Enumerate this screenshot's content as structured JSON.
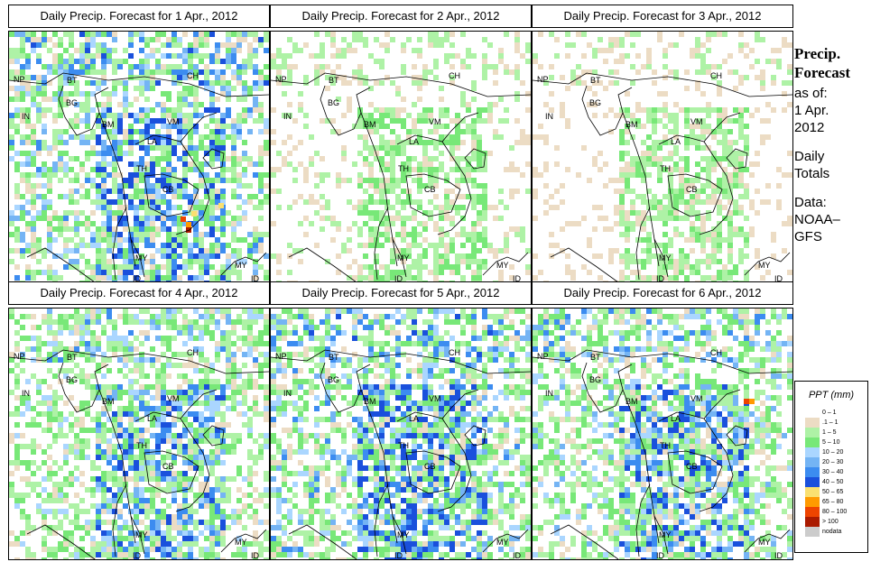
{
  "panels": [
    {
      "title": "Daily Precip. Forecast for  1 Apr., 2012",
      "intensity": 1.0,
      "seed": 11
    },
    {
      "title": "Daily Precip. Forecast for  2 Apr., 2012",
      "intensity": 0.6,
      "seed": 23
    },
    {
      "title": "Daily Precip. Forecast for  3 Apr., 2012",
      "intensity": 0.55,
      "seed": 37
    },
    {
      "title": "Daily Precip. Forecast for  4 Apr., 2012",
      "intensity": 0.9,
      "seed": 41
    },
    {
      "title": "Daily Precip. Forecast for  5 Apr., 2012",
      "intensity": 1.0,
      "seed": 53
    },
    {
      "title": "Daily Precip. Forecast for  6 Apr., 2012",
      "intensity": 0.95,
      "seed": 67
    }
  ],
  "country_labels": [
    "NP",
    "BT",
    "BG",
    "IN",
    "BM",
    "CH",
    "VM",
    "LA",
    "TH",
    "CB",
    "MY",
    "ID",
    "MY",
    "ID"
  ],
  "side": {
    "title_line1": "Precip.",
    "title_line2": "Forecast",
    "asof": "as of:",
    "date_line1": "1 Apr.",
    "date_line2": "2012",
    "daily_line1": "Daily",
    "daily_line2": "Totals",
    "data_line1": "Data:",
    "data_line2": "NOAA–",
    "data_line3": "GFS"
  },
  "legend": {
    "title": "PPT (mm)",
    "items": [
      {
        "label": "0 – 1",
        "color": "#ffffff"
      },
      {
        "label": ".1 – 1",
        "color": "#ecdcc4"
      },
      {
        "label": "1 – 5",
        "color": "#aef2a6"
      },
      {
        "label": "5 – 10",
        "color": "#78e878"
      },
      {
        "label": "10 – 20",
        "color": "#aad6ff"
      },
      {
        "label": "20 – 30",
        "color": "#74b4f4"
      },
      {
        "label": "30 – 40",
        "color": "#3c8cf0"
      },
      {
        "label": "40 – 50",
        "color": "#1a50dc"
      },
      {
        "label": "50 – 65",
        "color": "#fae070"
      },
      {
        "label": "65 – 80",
        "color": "#ff9a00"
      },
      {
        "label": "80 – 100",
        "color": "#ee4400"
      },
      {
        "label": "> 100",
        "color": "#aa1a00"
      },
      {
        "label": "nodata",
        "color": "#cccccc"
      }
    ]
  }
}
